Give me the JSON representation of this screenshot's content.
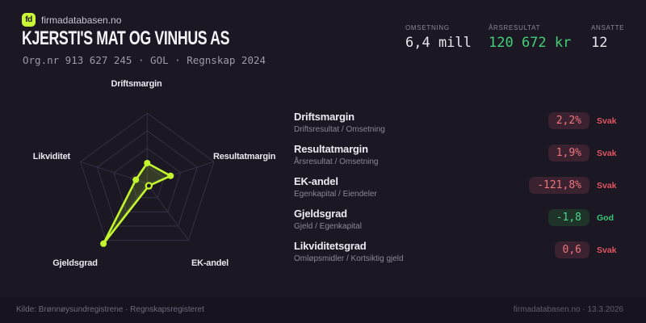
{
  "brand": {
    "logo_text": "fd",
    "name": "firmadatabasen.no"
  },
  "header": {
    "title": "KJERSTI'S MAT OG VINHUS AS",
    "subtitle": "Org.nr 913 627 245 · GOL · Regnskap 2024"
  },
  "stats": [
    {
      "label": "OMSETNING",
      "value": "6,4 mill",
      "color": "#e9e7ee"
    },
    {
      "label": "ÅRSRESULTAT",
      "value": "120 672 kr",
      "color": "#42d078"
    },
    {
      "label": "ANSATTE",
      "value": "12",
      "color": "#e9e7ee"
    }
  ],
  "chart_data": {
    "type": "radar",
    "axes": [
      "Driftsmargin",
      "Resultatmargin",
      "EK-andel",
      "Gjeldsgrad",
      "Likviditet"
    ],
    "values_normalized": [
      0.29,
      0.35,
      0.04,
      1.06,
      0.17
    ],
    "values_label": [
      "2,2%",
      "1,9%",
      "-121,8%",
      "-1,8",
      "0,6"
    ],
    "rings": 4,
    "legend": "none",
    "stroke_color": "#c3f62d",
    "fill_opacity": 0.16,
    "grid_color": "#343043"
  },
  "metrics": [
    {
      "name": "Driftsmargin",
      "formula": "Driftsresultat / Omsetning",
      "value": "2,2%",
      "rating": "Svak",
      "status": "bad"
    },
    {
      "name": "Resultatmargin",
      "formula": "Årsresultat / Omsetning",
      "value": "1,9%",
      "rating": "Svak",
      "status": "bad"
    },
    {
      "name": "EK-andel",
      "formula": "Egenkapital / Eiendeler",
      "value": "-121,8%",
      "rating": "Svak",
      "status": "bad"
    },
    {
      "name": "Gjeldsgrad",
      "formula": "Gjeld / Egenkapital",
      "value": "-1,8",
      "rating": "God",
      "status": "good"
    },
    {
      "name": "Likviditetsgrad",
      "formula": "Omløpsmidler / Kortsiktig gjeld",
      "value": "0,6",
      "rating": "Svak",
      "status": "bad"
    }
  ],
  "footer": {
    "source": "Kilde: Brønnøysundregistrene · Regnskapsregisteret",
    "attribution": "firmadatabasen.no · 13.3.2026"
  },
  "colors": {
    "background": "#1b1824",
    "accent_lime": "#c3f62d",
    "positive_green": "#42d078",
    "negative_red": "#e2555f",
    "pill_bad_bg": "#3a2230",
    "pill_good_bg": "#1e3429"
  }
}
